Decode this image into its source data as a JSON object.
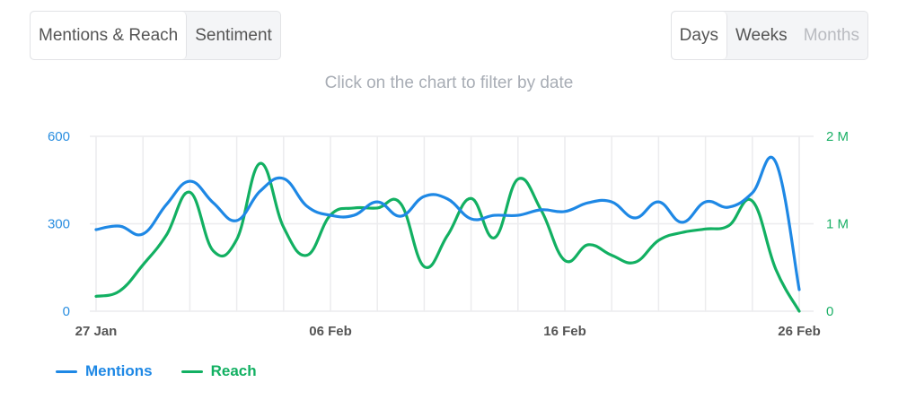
{
  "tabs": {
    "items": [
      {
        "label": "Mentions & Reach",
        "active": true
      },
      {
        "label": "Sentiment",
        "active": false
      }
    ]
  },
  "period": {
    "items": [
      {
        "label": "Days",
        "active": true,
        "disabled": false
      },
      {
        "label": "Weeks",
        "active": false,
        "disabled": false
      },
      {
        "label": "Months",
        "active": false,
        "disabled": true
      }
    ]
  },
  "hint": "Click on the chart to filter by date",
  "colors": {
    "mentions": "#1e88e5",
    "reach": "#12b062",
    "grid": "#ececee"
  },
  "legend": [
    {
      "label": "Mentions",
      "color": "#1e88e5"
    },
    {
      "label": "Reach",
      "color": "#12b062"
    }
  ],
  "chart_data": {
    "type": "line",
    "title": "",
    "xlabel": "",
    "ylabel": "Mentions",
    "y2label": "Reach",
    "x": [
      "27 Jan",
      "28 Jan",
      "29 Jan",
      "30 Jan",
      "31 Jan",
      "01 Feb",
      "02 Feb",
      "03 Feb",
      "04 Feb",
      "05 Feb",
      "06 Feb",
      "07 Feb",
      "08 Feb",
      "09 Feb",
      "10 Feb",
      "11 Feb",
      "12 Feb",
      "13 Feb",
      "14 Feb",
      "15 Feb",
      "16 Feb",
      "17 Feb",
      "18 Feb",
      "19 Feb",
      "20 Feb",
      "21 Feb",
      "22 Feb",
      "23 Feb",
      "24 Feb",
      "25 Feb",
      "26 Feb"
    ],
    "x_tick_labels": [
      "27 Jan",
      "06 Feb",
      "16 Feb",
      "26 Feb"
    ],
    "x_tick_indices": [
      0,
      10,
      20,
      30
    ],
    "ylim": [
      0,
      600
    ],
    "y_ticks": [
      0,
      300,
      600
    ],
    "y_tick_labels": [
      "0",
      "300",
      "600"
    ],
    "y2lim": [
      0,
      2000000
    ],
    "y2_ticks": [
      0,
      1000000,
      2000000
    ],
    "y2_tick_labels": [
      "0",
      "1 M",
      "2 M"
    ],
    "grid": true,
    "legend_position": "bottom-left",
    "series": [
      {
        "name": "Mentions",
        "axis": "left",
        "values": [
          280,
          292,
          265,
          366,
          446,
          372,
          311,
          412,
          455,
          360,
          329,
          329,
          375,
          326,
          394,
          385,
          317,
          329,
          329,
          348,
          342,
          372,
          375,
          320,
          375,
          305,
          375,
          357,
          406,
          511,
          74
        ]
      },
      {
        "name": "Reach",
        "axis": "right",
        "values": [
          170000,
          230000,
          530000,
          870000,
          1360000,
          690000,
          820000,
          1690000,
          960000,
          640000,
          1100000,
          1180000,
          1180000,
          1230000,
          510000,
          870000,
          1290000,
          840000,
          1510000,
          1150000,
          580000,
          760000,
          640000,
          560000,
          810000,
          900000,
          940000,
          980000,
          1260000,
          480000,
          0
        ]
      }
    ]
  }
}
